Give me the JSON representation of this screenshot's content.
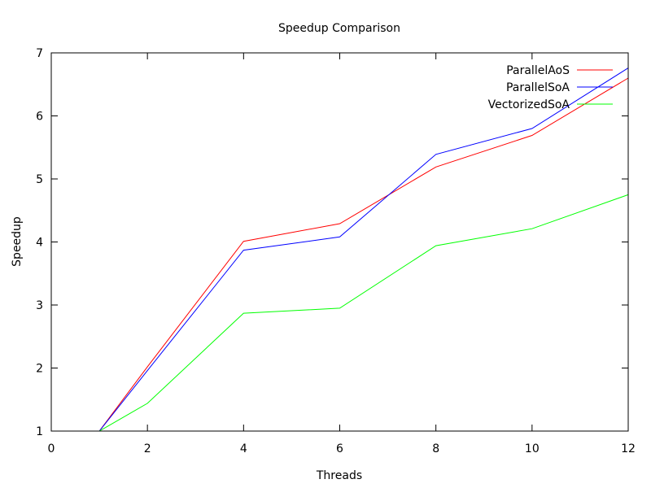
{
  "chart_data": {
    "type": "line",
    "title": "Speedup Comparison",
    "xlabel": "Threads",
    "ylabel": "Speedup",
    "xlim": [
      0,
      12
    ],
    "ylim": [
      1,
      7
    ],
    "xticks": [
      0,
      2,
      4,
      6,
      8,
      10,
      12
    ],
    "yticks": [
      1,
      2,
      3,
      4,
      5,
      6,
      7
    ],
    "grid": false,
    "legend_position": "top-right",
    "x": [
      1,
      2,
      4,
      6,
      8,
      10,
      12
    ],
    "series": [
      {
        "name": "ParallelAoS",
        "color": "#ff0000",
        "values": [
          1.0,
          2.02,
          4.01,
          4.29,
          5.19,
          5.69,
          6.6
        ]
      },
      {
        "name": "ParallelSoA",
        "color": "#0000ff",
        "values": [
          1.0,
          1.96,
          3.87,
          4.08,
          5.39,
          5.8,
          6.76
        ]
      },
      {
        "name": "VectorizedSoA",
        "color": "#00ff00",
        "values": [
          1.0,
          1.44,
          2.87,
          2.95,
          3.94,
          4.21,
          4.75
        ]
      }
    ]
  }
}
